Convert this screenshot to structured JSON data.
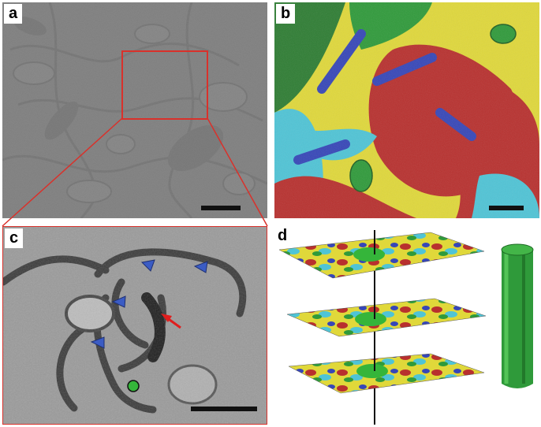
{
  "figure": {
    "panels": [
      {
        "label": "a",
        "kind": "electron-micrograph-grayscale",
        "scale_bar": true
      },
      {
        "label": "b",
        "kind": "segmentation-color-overlay",
        "scale_bar": true
      },
      {
        "label": "c",
        "kind": "electron-micrograph-zoom",
        "scale_bar": true,
        "markers": {
          "arrowheads": 4,
          "arrow": 1,
          "dot": 1
        }
      },
      {
        "label": "d",
        "kind": "stacked-sections-3d-reconstruction",
        "sections": 3
      }
    ],
    "colors": {
      "zoom_box": "#d9312b",
      "arrowhead": "#3b5cc4",
      "arrow": "#e01e1e",
      "dot": "#35b53a",
      "neurite_green": "#2f9a3a",
      "seg_red": "#b8302e",
      "seg_yellow": "#e0d83a",
      "seg_cyan": "#4fc4d6",
      "seg_blue": "#3646b8",
      "seg_darkgreen": "#2e7d33"
    }
  }
}
